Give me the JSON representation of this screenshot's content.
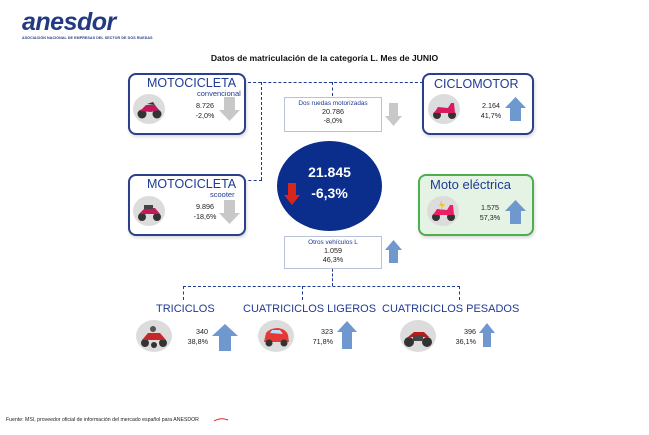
{
  "brand": {
    "logo": "anesdor",
    "tagline": "ASOCIACIÓN NACIONAL DE EMPRESAS DEL SECTOR DE DOS RUEDAS"
  },
  "title": "Datos de matriculación de la categoría L. Mes de JUNIO",
  "total": {
    "value": "21.845",
    "change": "-6,3%"
  },
  "categories": {
    "moto_convencional": {
      "title": "MOTOCICLETA",
      "subtitle": "convencional",
      "value": "8.726",
      "change": "-2,0%"
    },
    "moto_scooter": {
      "title": "MOTOCICLETA",
      "subtitle": "scooter",
      "value": "9.896",
      "change": "-18,6%"
    },
    "ciclomotor": {
      "title": "CICLOMOTOR",
      "value": "2.164",
      "change": "41,7%"
    },
    "moto_electrica": {
      "title": "Moto eléctrica",
      "value": "1.575",
      "change": "57,3%"
    },
    "dos_ruedas": {
      "label": "Dos ruedas motorizadas",
      "value": "20.786",
      "change": "-8,0%"
    },
    "otros": {
      "label": "Otros vehículos L",
      "value": "1.059",
      "change": "46,3%"
    },
    "triciclos": {
      "title": "TRICICLOS",
      "value": "340",
      "change": "38,8%"
    },
    "cuatri_ligeros": {
      "title": "CUATRICICLOS LIGEROS",
      "value": "323",
      "change": "71,8%"
    },
    "cuatri_pesados": {
      "title": "CUATRICICLOS PESADOS",
      "value": "396",
      "change": "36,1%"
    }
  },
  "footer": "Fuente: MSI, proveedor oficial de información del mercado español para ANESDOR",
  "colors": {
    "navy": "#0b2d8c",
    "up_arrow": "#6f98cf",
    "down_arrow": "#c8c8c8",
    "red_arrow": "#d9261c",
    "green_border": "#4caf50"
  }
}
